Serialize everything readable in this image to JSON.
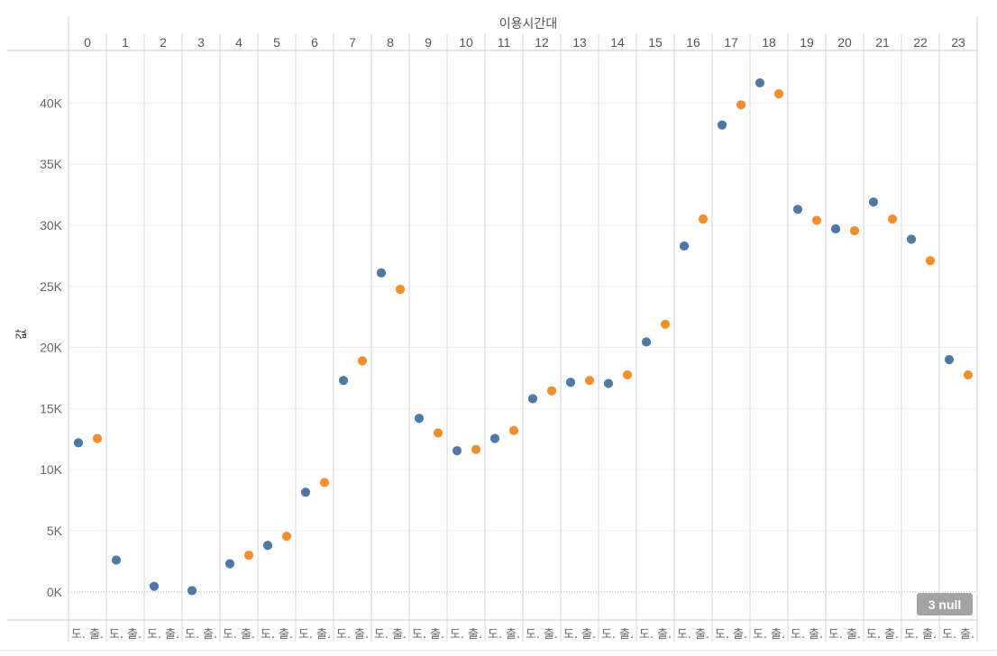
{
  "chart_data": {
    "type": "scatter",
    "title": "이용시간대",
    "ylabel": "값",
    "xlabel": "",
    "categories": [
      "0",
      "1",
      "2",
      "3",
      "4",
      "5",
      "6",
      "7",
      "8",
      "9",
      "10",
      "11",
      "12",
      "13",
      "14",
      "15",
      "16",
      "17",
      "18",
      "19",
      "20",
      "21",
      "22",
      "23"
    ],
    "sub_categories": [
      "도.",
      "출."
    ],
    "ylim": [
      -2300,
      44300
    ],
    "yticks": [
      0,
      5000,
      10000,
      15000,
      20000,
      25000,
      30000,
      35000,
      40000
    ],
    "ytick_labels": [
      "0K",
      "5K",
      "10K",
      "15K",
      "20K",
      "25K",
      "30K",
      "35K",
      "40K"
    ],
    "grid": true,
    "series": [
      {
        "name": "도.",
        "color": "#4e79a7",
        "values": [
          12200,
          2600,
          450,
          100,
          2300,
          3800,
          8150,
          17300,
          26100,
          14200,
          11550,
          12550,
          15800,
          17150,
          17050,
          20450,
          28300,
          38200,
          41650,
          31300,
          29700,
          31900,
          28850,
          19000
        ]
      },
      {
        "name": "출.",
        "color": "#f28e2b",
        "values": [
          12550,
          null,
          null,
          null,
          3000,
          4550,
          8950,
          18900,
          24750,
          13000,
          11650,
          13200,
          16450,
          17300,
          17750,
          21900,
          30500,
          39850,
          40750,
          30400,
          29550,
          30500,
          27100,
          17750
        ]
      }
    ],
    "null_indicator": "3 null"
  }
}
